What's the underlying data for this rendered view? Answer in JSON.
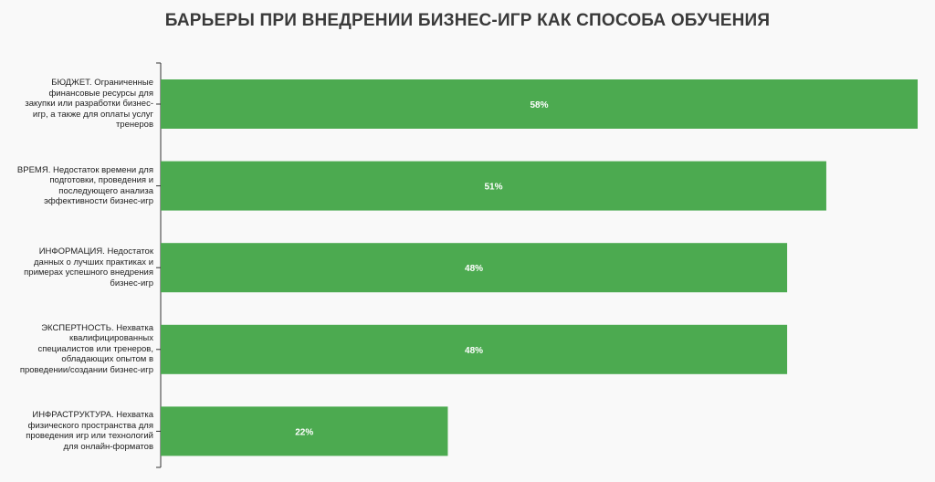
{
  "chart_data": {
    "type": "bar",
    "orientation": "horizontal",
    "title": "БАРЬЕРЫ ПРИ ВНЕДРЕНИИ БИЗНЕС-ИГР КАК СПОСОБА ОБУЧЕНИЯ",
    "xlabel": "",
    "ylabel": "",
    "xlim": [
      0,
      58
    ],
    "grid": false,
    "legend": "none",
    "bar_color": "#4caa50",
    "data_label_color": "#ffffff",
    "categories": [
      "БЮДЖЕТ. Ограниченные финансовые ресурсы для закупки или разработки бизнес-игр, а также для оплаты услуг тренеров",
      "ВРЕМЯ. Недостаток времени для подготовки, проведения и последующего анализа эффективности бизнес-игр",
      "ИНФОРМАЦИЯ. Недостаток данных о лучших практиках и примерах успешного внедрения бизнес-игр",
      "ЭКСПЕРТНОСТЬ. Нехватка квалифицированных специалистов или тренеров, обладающих опытом в проведении/создании бизнес-игр",
      "ИНФРАСТРУКТУРА. Нехватка физического пространства для проведения игр или технологий для онлайн-форматов"
    ],
    "values": [
      58,
      51,
      48,
      48,
      22
    ],
    "data_labels": [
      "58%",
      "51%",
      "48%",
      "48%",
      "22%"
    ]
  }
}
